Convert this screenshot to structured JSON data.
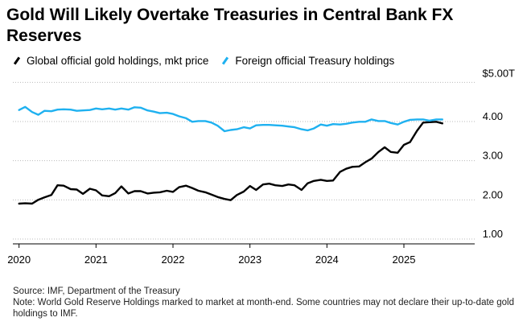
{
  "chart_data": {
    "type": "line",
    "title": "Gold Will Likely Overtake Treasuries in Central Bank FX Reserves",
    "xlabel": "",
    "ylabel": "",
    "ylim": [
      0.85,
      5.0
    ],
    "xlim": [
      2019.92,
      2025.92
    ],
    "y_unit_top_label": "$5.00T",
    "yticks": [
      {
        "value": 4.0,
        "label": "4.00"
      },
      {
        "value": 3.0,
        "label": "3.00"
      },
      {
        "value": 2.0,
        "label": "2.00"
      },
      {
        "value": 1.0,
        "label": "1.00"
      }
    ],
    "xticks": [
      {
        "value": 2020,
        "label": "2020"
      },
      {
        "value": 2021,
        "label": "2021"
      },
      {
        "value": 2022,
        "label": "2022"
      },
      {
        "value": 2023,
        "label": "2023"
      },
      {
        "value": 2024,
        "label": "2024"
      },
      {
        "value": 2025,
        "label": "2025"
      }
    ],
    "series": [
      {
        "name": "Global official gold holdings, mkt price",
        "color": "#000000",
        "points": [
          [
            2020.0,
            1.78
          ],
          [
            2020.08,
            1.79
          ],
          [
            2020.17,
            1.78
          ],
          [
            2020.25,
            1.88
          ],
          [
            2020.33,
            1.94
          ],
          [
            2020.42,
            2.0
          ],
          [
            2020.5,
            2.25
          ],
          [
            2020.58,
            2.24
          ],
          [
            2020.67,
            2.15
          ],
          [
            2020.75,
            2.14
          ],
          [
            2020.83,
            2.03
          ],
          [
            2020.92,
            2.16
          ],
          [
            2021.0,
            2.12
          ],
          [
            2021.08,
            1.99
          ],
          [
            2021.17,
            1.97
          ],
          [
            2021.25,
            2.05
          ],
          [
            2021.33,
            2.22
          ],
          [
            2021.42,
            2.04
          ],
          [
            2021.5,
            2.1
          ],
          [
            2021.58,
            2.1
          ],
          [
            2021.67,
            2.04
          ],
          [
            2021.75,
            2.06
          ],
          [
            2021.83,
            2.07
          ],
          [
            2021.92,
            2.11
          ],
          [
            2022.0,
            2.08
          ],
          [
            2022.08,
            2.2
          ],
          [
            2022.17,
            2.24
          ],
          [
            2022.25,
            2.18
          ],
          [
            2022.33,
            2.11
          ],
          [
            2022.42,
            2.07
          ],
          [
            2022.5,
            2.01
          ],
          [
            2022.58,
            1.95
          ],
          [
            2022.67,
            1.9
          ],
          [
            2022.75,
            1.87
          ],
          [
            2022.83,
            2.0
          ],
          [
            2022.92,
            2.09
          ],
          [
            2023.0,
            2.23
          ],
          [
            2023.08,
            2.13
          ],
          [
            2023.17,
            2.27
          ],
          [
            2023.25,
            2.29
          ],
          [
            2023.33,
            2.25
          ],
          [
            2023.42,
            2.23
          ],
          [
            2023.5,
            2.27
          ],
          [
            2023.58,
            2.25
          ],
          [
            2023.67,
            2.13
          ],
          [
            2023.75,
            2.3
          ],
          [
            2023.83,
            2.36
          ],
          [
            2023.92,
            2.39
          ],
          [
            2024.0,
            2.36
          ],
          [
            2024.08,
            2.37
          ],
          [
            2024.17,
            2.59
          ],
          [
            2024.25,
            2.67
          ],
          [
            2024.33,
            2.72
          ],
          [
            2024.42,
            2.73
          ],
          [
            2024.5,
            2.84
          ],
          [
            2024.58,
            2.93
          ],
          [
            2024.67,
            3.1
          ],
          [
            2024.75,
            3.22
          ],
          [
            2024.83,
            3.1
          ],
          [
            2024.92,
            3.08
          ],
          [
            2025.0,
            3.28
          ],
          [
            2025.08,
            3.35
          ],
          [
            2025.17,
            3.64
          ],
          [
            2025.25,
            3.85
          ],
          [
            2025.33,
            3.86
          ],
          [
            2025.42,
            3.87
          ],
          [
            2025.5,
            3.83
          ]
        ]
      },
      {
        "name": "Foreign official Treasury holdings",
        "color": "#1fb1f0",
        "points": [
          [
            2020.0,
            4.17
          ],
          [
            2020.08,
            4.25
          ],
          [
            2020.17,
            4.12
          ],
          [
            2020.25,
            4.05
          ],
          [
            2020.33,
            4.15
          ],
          [
            2020.42,
            4.14
          ],
          [
            2020.5,
            4.18
          ],
          [
            2020.58,
            4.19
          ],
          [
            2020.67,
            4.18
          ],
          [
            2020.75,
            4.15
          ],
          [
            2020.83,
            4.16
          ],
          [
            2020.92,
            4.17
          ],
          [
            2021.0,
            4.21
          ],
          [
            2021.08,
            4.19
          ],
          [
            2021.17,
            4.21
          ],
          [
            2021.25,
            4.18
          ],
          [
            2021.33,
            4.21
          ],
          [
            2021.42,
            4.18
          ],
          [
            2021.5,
            4.24
          ],
          [
            2021.58,
            4.23
          ],
          [
            2021.67,
            4.16
          ],
          [
            2021.75,
            4.13
          ],
          [
            2021.83,
            4.09
          ],
          [
            2021.92,
            4.1
          ],
          [
            2022.0,
            4.07
          ],
          [
            2022.08,
            4.01
          ],
          [
            2022.17,
            3.96
          ],
          [
            2022.25,
            3.87
          ],
          [
            2022.33,
            3.89
          ],
          [
            2022.42,
            3.89
          ],
          [
            2022.5,
            3.85
          ],
          [
            2022.58,
            3.77
          ],
          [
            2022.67,
            3.63
          ],
          [
            2022.75,
            3.66
          ],
          [
            2022.83,
            3.68
          ],
          [
            2022.92,
            3.73
          ],
          [
            2023.0,
            3.7
          ],
          [
            2023.08,
            3.78
          ],
          [
            2023.17,
            3.79
          ],
          [
            2023.25,
            3.79
          ],
          [
            2023.33,
            3.78
          ],
          [
            2023.42,
            3.77
          ],
          [
            2023.5,
            3.75
          ],
          [
            2023.58,
            3.73
          ],
          [
            2023.67,
            3.68
          ],
          [
            2023.75,
            3.65
          ],
          [
            2023.83,
            3.7
          ],
          [
            2023.92,
            3.8
          ],
          [
            2024.0,
            3.77
          ],
          [
            2024.08,
            3.81
          ],
          [
            2024.17,
            3.8
          ],
          [
            2024.25,
            3.82
          ],
          [
            2024.33,
            3.85
          ],
          [
            2024.42,
            3.87
          ],
          [
            2024.5,
            3.87
          ],
          [
            2024.58,
            3.93
          ],
          [
            2024.67,
            3.89
          ],
          [
            2024.75,
            3.89
          ],
          [
            2024.83,
            3.84
          ],
          [
            2024.92,
            3.8
          ],
          [
            2025.0,
            3.87
          ],
          [
            2025.08,
            3.92
          ],
          [
            2025.17,
            3.93
          ],
          [
            2025.25,
            3.93
          ],
          [
            2025.33,
            3.9
          ],
          [
            2025.42,
            3.93
          ],
          [
            2025.5,
            3.93
          ]
        ]
      }
    ]
  },
  "source_text": "Source: IMF, Department of the Treasury",
  "note_text": "Note: World Gold Reserve Holdings marked to market at month-end. Some countries may not declare their up-to-date gold holdings to IMF."
}
